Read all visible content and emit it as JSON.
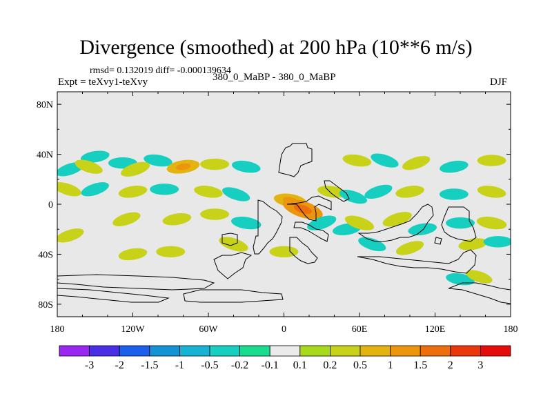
{
  "chart_data": {
    "type": "heatmap",
    "title": "Divergence (smoothed) at 200 hPa (10**6 m/s)",
    "stats_text": "rmsd= 0.132019 diff= -0.000139634",
    "left_label": "Expt = teXvy1-teXvy",
    "center_label": "380_0_MaBP - 380_0_MaBP",
    "right_label": "DJF",
    "x_range": [
      -180,
      180
    ],
    "y_range": [
      -90,
      90
    ],
    "x_ticks": [
      {
        "value": -180,
        "label": "180"
      },
      {
        "value": -120,
        "label": "120W"
      },
      {
        "value": -60,
        "label": "60W"
      },
      {
        "value": 0,
        "label": "0"
      },
      {
        "value": 60,
        "label": "60E"
      },
      {
        "value": 120,
        "label": "120E"
      },
      {
        "value": 180,
        "label": "180"
      }
    ],
    "y_ticks": [
      {
        "value": 80,
        "label": "80N"
      },
      {
        "value": 40,
        "label": "40N"
      },
      {
        "value": 0,
        "label": "0"
      },
      {
        "value": -40,
        "label": "40S"
      },
      {
        "value": -80,
        "label": "80S"
      }
    ],
    "background_color": "#e8e8e8",
    "colorbar": {
      "colors": [
        "#9a27f0",
        "#4a2ee6",
        "#1a60ea",
        "#1592d6",
        "#16b3d4",
        "#16cfc0",
        "#1adc90",
        "#ebebeb",
        "#a6da1a",
        "#c7d218",
        "#e3b410",
        "#ec960e",
        "#ed6e0e",
        "#ea380c",
        "#e50c0c"
      ],
      "labels": [
        "-3",
        "-2",
        "-1.5",
        "-1",
        "-0.5",
        "-0.2",
        "-0.1",
        "0.1",
        "0.2",
        "0.5",
        "1",
        "1.5",
        "2",
        "3"
      ]
    },
    "anomalies": [
      {
        "lon": -170,
        "lat": 28,
        "value": -0.3
      },
      {
        "lon": -150,
        "lat": 38,
        "value": -0.3
      },
      {
        "lon": -128,
        "lat": 33,
        "value": -0.3
      },
      {
        "lon": -100,
        "lat": 35,
        "value": -0.3
      },
      {
        "lon": -155,
        "lat": 30,
        "value": 0.3
      },
      {
        "lon": -118,
        "lat": 28,
        "value": 0.4
      },
      {
        "lon": -80,
        "lat": 30,
        "value": 0.6
      },
      {
        "lon": -55,
        "lat": 32,
        "value": 0.3
      },
      {
        "lon": -30,
        "lat": 30,
        "value": -0.3
      },
      {
        "lon": -172,
        "lat": 12,
        "value": 0.3
      },
      {
        "lon": -150,
        "lat": 12,
        "value": -0.3
      },
      {
        "lon": -120,
        "lat": 10,
        "value": 0.3
      },
      {
        "lon": -95,
        "lat": 12,
        "value": -0.3
      },
      {
        "lon": -60,
        "lat": 10,
        "value": 0.3
      },
      {
        "lon": -38,
        "lat": 8,
        "value": -0.3
      },
      {
        "lon": -125,
        "lat": -12,
        "value": 0.3
      },
      {
        "lon": -85,
        "lat": -12,
        "value": 0.3
      },
      {
        "lon": -55,
        "lat": -8,
        "value": 0.3
      },
      {
        "lon": -30,
        "lat": -15,
        "value": -0.4
      },
      {
        "lon": -40,
        "lat": -32,
        "value": 0.4
      },
      {
        "lon": -170,
        "lat": -25,
        "value": 0.3
      },
      {
        "lon": -120,
        "lat": -40,
        "value": 0.3
      },
      {
        "lon": -90,
        "lat": -38,
        "value": 0.3
      },
      {
        "lon": 5,
        "lat": 3,
        "value": 0.6
      },
      {
        "lon": 15,
        "lat": -4,
        "value": 1.2
      },
      {
        "lon": 30,
        "lat": -15,
        "value": -0.4
      },
      {
        "lon": 50,
        "lat": -20,
        "value": -0.3
      },
      {
        "lon": 0,
        "lat": -38,
        "value": 0.3
      },
      {
        "lon": 38,
        "lat": 10,
        "value": 0.3
      },
      {
        "lon": 55,
        "lat": 6,
        "value": -0.3
      },
      {
        "lon": 75,
        "lat": 10,
        "value": -0.3
      },
      {
        "lon": 100,
        "lat": 10,
        "value": 0.3
      },
      {
        "lon": 135,
        "lat": 8,
        "value": -0.3
      },
      {
        "lon": 165,
        "lat": 10,
        "value": 0.3
      },
      {
        "lon": 60,
        "lat": -15,
        "value": 0.4
      },
      {
        "lon": 90,
        "lat": -12,
        "value": 0.4
      },
      {
        "lon": 110,
        "lat": -20,
        "value": -0.3
      },
      {
        "lon": 140,
        "lat": -15,
        "value": -0.3
      },
      {
        "lon": 165,
        "lat": -15,
        "value": 0.4
      },
      {
        "lon": 70,
        "lat": -32,
        "value": -0.3
      },
      {
        "lon": 100,
        "lat": -35,
        "value": 0.3
      },
      {
        "lon": 150,
        "lat": -32,
        "value": 0.3
      },
      {
        "lon": 170,
        "lat": -30,
        "value": -0.3
      },
      {
        "lon": 58,
        "lat": 35,
        "value": 0.3
      },
      {
        "lon": 80,
        "lat": 35,
        "value": -0.3
      },
      {
        "lon": 105,
        "lat": 33,
        "value": 0.3
      },
      {
        "lon": 135,
        "lat": 30,
        "value": -0.3
      },
      {
        "lon": 165,
        "lat": 35,
        "value": 0.3
      },
      {
        "lon": 140,
        "lat": -60,
        "value": -0.3
      },
      {
        "lon": 155,
        "lat": -58,
        "value": 0.2
      }
    ]
  }
}
